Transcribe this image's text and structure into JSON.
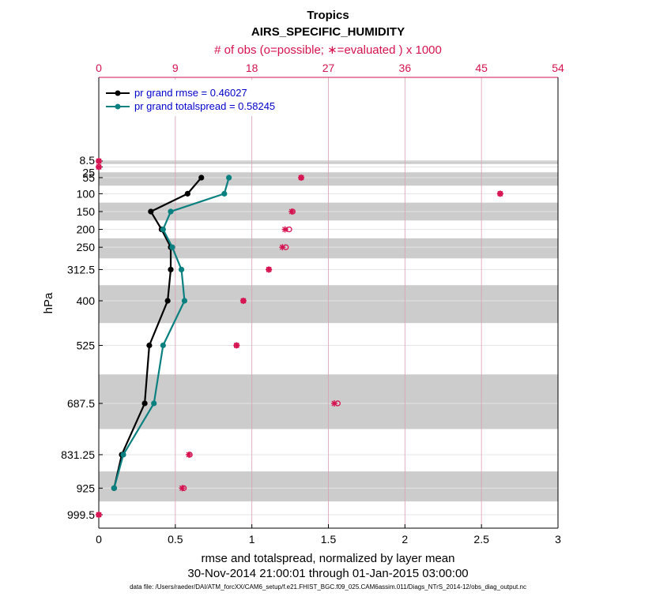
{
  "chart_data": {
    "type": "line",
    "title": "Tropics",
    "subtitle": "AIRS_SPECIFIC_HUMIDITY",
    "top_axis_label": "# of obs (o=possible; ∗=evaluated ) x 1000",
    "xlabel": "rmse and totalspread, normalized by layer mean",
    "ylabel": "hPa",
    "date_range": "30-Nov-2014 21:00:01 through 01-Jan-2015 03:00:00",
    "footnote": "data file: /Users/raeder/DAI/ATM_forcXX/CAM6_setup/f.e21.FHIST_BGC.f09_025.CAM6assim.011/Diags_NTrS_2014-12/obs_diag_output.nc",
    "xlim": [
      0,
      3
    ],
    "x_ticks": [
      "0",
      "0.5",
      "1",
      "1.5",
      "2",
      "2.5",
      "3"
    ],
    "top_xlim": [
      0,
      54
    ],
    "top_ticks": [
      "0",
      "9",
      "18",
      "27",
      "36",
      "45",
      "54"
    ],
    "levels": [
      "8.5",
      "25",
      "55",
      "100",
      "150",
      "200",
      "250",
      "312.5",
      "400",
      "525",
      "687.5",
      "831.25",
      "925",
      "999.5"
    ],
    "series": [
      {
        "name": "pr grand rmse = 0.46027",
        "color": "#000000",
        "levels": [
          55,
          100,
          150,
          200,
          250,
          312.5,
          400,
          525,
          687.5,
          831.25,
          925
        ],
        "values": [
          0.67,
          0.58,
          0.34,
          0.41,
          0.47,
          0.47,
          0.45,
          0.33,
          0.3,
          0.15,
          0.1
        ]
      },
      {
        "name": "pr grand totalspread = 0.58245",
        "color": "#0b8080",
        "levels": [
          55,
          100,
          150,
          200,
          250,
          312.5,
          400,
          525,
          687.5,
          831.25,
          925
        ],
        "values": [
          0.85,
          0.82,
          0.47,
          0.42,
          0.48,
          0.54,
          0.56,
          0.42,
          0.36,
          0.16,
          0.1
        ]
      }
    ],
    "obs_counts": {
      "levels": [
        8.5,
        25,
        55,
        100,
        150,
        200,
        250,
        312.5,
        400,
        525,
        687.5,
        831.25,
        925,
        999.5
      ],
      "possible": [
        0,
        0,
        23.8,
        47.2,
        22.8,
        22.4,
        22.0,
        20.0,
        17.0,
        16.2,
        28.1,
        10.7,
        10.0,
        0
      ],
      "evaluated": [
        0,
        0,
        23.8,
        47.2,
        22.7,
        21.9,
        21.6,
        20.0,
        17.0,
        16.2,
        27.7,
        10.6,
        9.8,
        0
      ]
    }
  }
}
